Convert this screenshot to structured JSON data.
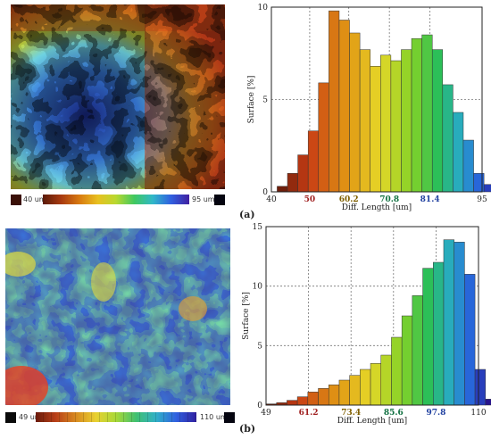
{
  "panel_a": {
    "label": "(a)",
    "colorbar": {
      "min_label": "40 um",
      "max_label": "95 um"
    }
  },
  "panel_b": {
    "label": "(b)",
    "colorbar": {
      "min_label": "49 um",
      "max_label": "110 um"
    }
  },
  "chart_data": [
    {
      "type": "bar",
      "title": "",
      "xlabel": "Diff. Length [um]",
      "ylabel": "Surface [%]",
      "xlim": [
        40,
        95
      ],
      "ylim": [
        0,
        10
      ],
      "xticks": [
        "40",
        "50",
        "60.2",
        "70.8",
        "81.4",
        "95"
      ],
      "xtick_values": [
        40,
        50,
        60.2,
        70.8,
        81.4,
        95
      ],
      "yticks": [
        "0",
        "5",
        "10"
      ],
      "bin_start": 41.5,
      "bin_width": 2.7,
      "values": [
        0.3,
        1.0,
        2.0,
        3.3,
        5.9,
        9.8,
        9.3,
        8.6,
        7.7,
        6.8,
        7.4,
        7.1,
        7.7,
        8.3,
        8.5,
        7.7,
        5.8,
        4.3,
        2.8,
        1.0,
        0.4,
        0.1
      ]
    },
    {
      "type": "bar",
      "title": "",
      "xlabel": "Diff. Length [um]",
      "ylabel": "Surface [%]",
      "xlim": [
        49,
        110
      ],
      "ylim": [
        0,
        15
      ],
      "xticks": [
        "49",
        "61.2",
        "73.4",
        "85.6",
        "97.8",
        "110"
      ],
      "xtick_values": [
        49,
        61.2,
        73.4,
        85.6,
        97.8,
        110
      ],
      "yticks": [
        "0",
        "5",
        "10",
        "15"
      ],
      "bin_start": 49,
      "bin_width": 3.0,
      "values": [
        0.1,
        0.2,
        0.4,
        0.7,
        1.1,
        1.4,
        1.7,
        2.1,
        2.5,
        3.0,
        3.5,
        4.2,
        5.7,
        7.5,
        9.2,
        11.5,
        12.0,
        13.9,
        13.7,
        11.0,
        3.0,
        0.5
      ]
    }
  ]
}
